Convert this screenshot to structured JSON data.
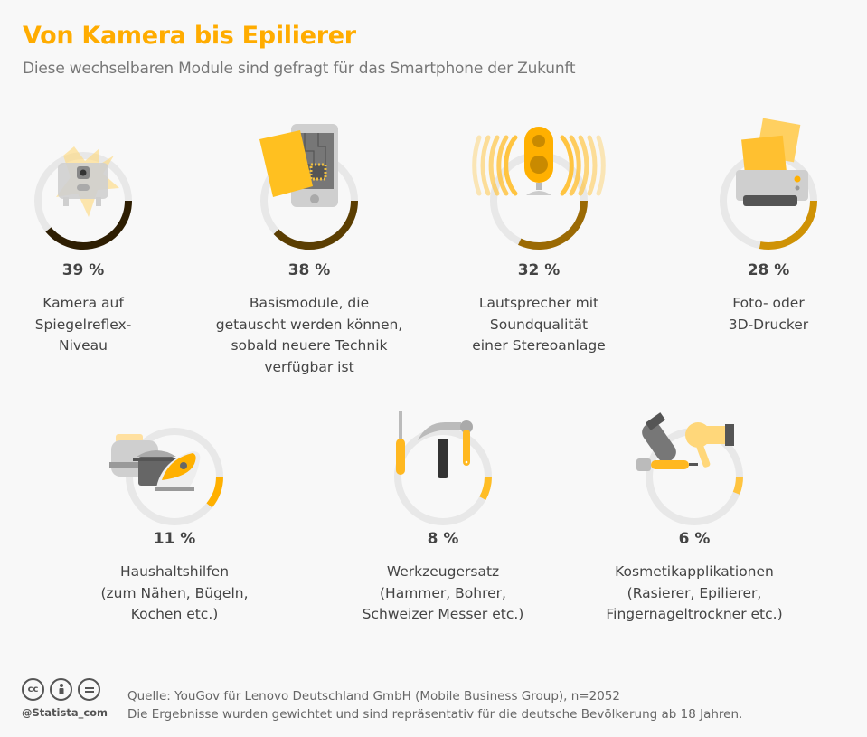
{
  "header": {
    "title": "Von Kamera bis Epilierer",
    "subtitle": "Diese wechselbaren Module sind gefragt für das Smartphone der Zukunft"
  },
  "chart_data": {
    "type": "pie",
    "title": "Von Kamera bis Epilierer",
    "subtitle": "Diese wechselbaren Module sind gefragt für das Smartphone der Zukunft",
    "unit": "%",
    "max": 100,
    "items": [
      {
        "value": 39,
        "value_label": "39 %",
        "label": "Kamera auf\nSpiegelreflex-\nNiveau",
        "icon": "camera-icon",
        "color": "#2e1e02"
      },
      {
        "value": 38,
        "value_label": "38 %",
        "label": "Basismodule, die\ngetauscht werden können,\nsobald neuere Technik\nverfügbar ist",
        "icon": "smartphone-chip-icon",
        "color": "#5b3e02"
      },
      {
        "value": 32,
        "value_label": "32 %",
        "label": "Lautsprecher mit\nSoundqualität\neiner Stereoanlage",
        "icon": "speaker-icon",
        "color": "#9b6a04"
      },
      {
        "value": 28,
        "value_label": "28 %",
        "label": "Foto- oder\n3D-Drucker",
        "icon": "printer-icon",
        "color": "#cf9205"
      },
      {
        "value": 11,
        "value_label": "11 %",
        "label": "Haushaltshilfen\n(zum Nähen, Bügeln,\nKochen etc.)",
        "icon": "household-icon",
        "color": "#ffb000"
      },
      {
        "value": 8,
        "value_label": "8 %",
        "label": "Werkzeugersatz\n(Hammer, Bohrer,\nSchweizer Messer etc.)",
        "icon": "tools-icon",
        "color": "#ffbd24"
      },
      {
        "value": 6,
        "value_label": "6 %",
        "label": "Kosmetikapplikationen\n(Rasierer, Epilierer,\nFingernageltrockner etc.)",
        "icon": "cosmetics-icon",
        "color": "#ffc440"
      }
    ],
    "track_color": "#e8e8e8"
  },
  "footer": {
    "license_icons": [
      "cc-icon",
      "attribution-icon",
      "no-derivatives-icon"
    ],
    "cc_text": "cc",
    "handle": "@Statista_com",
    "source": "Quelle: YouGov für Lenovo Deutschland GmbH (Mobile Business Group), n=2052",
    "note": "Die Ergebnisse wurden gewichtet und sind repräsentativ für die deutsche Bevölkerung ab 18 Jahren."
  }
}
